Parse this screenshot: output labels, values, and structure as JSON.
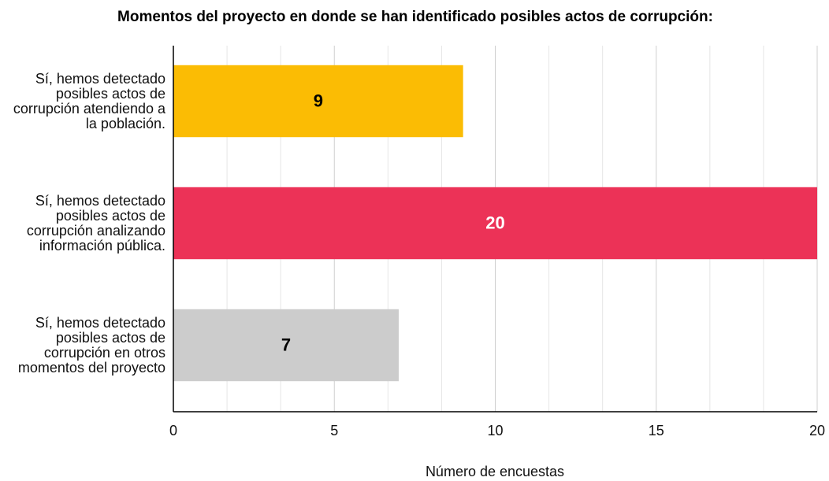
{
  "chart_data": {
    "type": "hbar",
    "title": "Momentos del proyecto en donde se han identificado posibles actos de corrupción:",
    "x_label": "Número de encuestas",
    "categories": [
      "Sí, hemos detectado posibles actos de corrupción atendiendo a la población.",
      "Sí, hemos detectado posibles actos de corrupción analizando información pública.",
      "Sí, hemos detectado posibles actos de corrupción en otros momentos del proyecto"
    ],
    "values": [
      9,
      20,
      7
    ],
    "colors": [
      "#fbbc04",
      "#ec3257",
      "#cccccc"
    ],
    "label_colors": [
      "#000000",
      "#ffffff",
      "#000000"
    ],
    "xlim": [
      0,
      20
    ],
    "xticks": [
      0,
      5,
      10,
      15,
      20
    ],
    "grid": true,
    "minor_grid_per_interval": 3
  }
}
